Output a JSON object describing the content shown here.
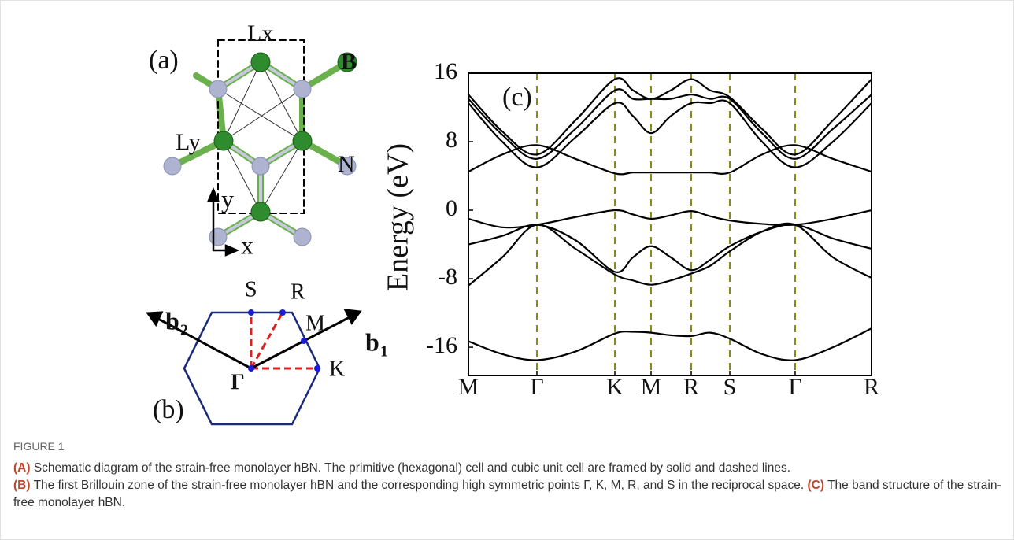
{
  "panel_a": {
    "label": "(a)",
    "lx": "Lx",
    "b": "B",
    "ly": "Ly",
    "n": "N",
    "y": "y",
    "x": "x"
  },
  "panel_b": {
    "label": "(b)",
    "s": "S",
    "r": "R",
    "m": "M",
    "k": "K",
    "gamma": "Γ",
    "b1": "b",
    "b1_sub": "1",
    "b2": "b",
    "b2_sub": "2"
  },
  "chart_data": {
    "type": "line",
    "panel_label": "(c)",
    "ylabel": "Energy (eV)",
    "x": [
      0,
      43,
      87,
      136,
      186,
      209,
      232,
      257,
      283,
      307,
      332,
      373,
      415,
      463,
      512
    ],
    "xlim": [
      0,
      512
    ],
    "xticks": [
      {
        "value": 0,
        "label": "M"
      },
      {
        "value": 87,
        "label": "Γ"
      },
      {
        "value": 186,
        "label": "K"
      },
      {
        "value": 232,
        "label": "M"
      },
      {
        "value": 283,
        "label": "R"
      },
      {
        "value": 332,
        "label": "S"
      },
      {
        "value": 415,
        "label": "Γ"
      },
      {
        "value": 512,
        "label": "R"
      }
    ],
    "ylim": [
      -19.3,
      16
    ],
    "yticks": [
      16,
      8,
      0,
      -8,
      -16
    ],
    "vline_color": "#8a8a1c",
    "series": [
      {
        "color": "#000000",
        "values": [
          -15.3,
          -16.8,
          -17.5,
          -16.5,
          -14.4,
          -14.2,
          -14.3,
          -14.6,
          -14.7,
          -14.3,
          -15.0,
          -16.8,
          -17.5,
          -16.0,
          -13.8
        ]
      },
      {
        "color": "#000000",
        "values": [
          -8.8,
          -5.5,
          -1.7,
          -4.5,
          -7.5,
          -8.2,
          -8.7,
          -8.2,
          -7.4,
          -6.5,
          -4.8,
          -2.5,
          -1.7,
          -5.5,
          -7.9
        ]
      },
      {
        "color": "#000000",
        "values": [
          -4.0,
          -3.0,
          -1.7,
          -3.5,
          -7.2,
          -5.5,
          -4.2,
          -5.5,
          -7.0,
          -5.8,
          -4.2,
          -2.5,
          -1.7,
          -3.3,
          -4.5
        ]
      },
      {
        "color": "#000000",
        "values": [
          -1.0,
          -2.0,
          -1.7,
          -0.8,
          0.0,
          -0.5,
          -1.0,
          -0.6,
          -0.1,
          -0.7,
          -1.2,
          -1.6,
          -1.7,
          -1.0,
          0.0
        ]
      },
      {
        "color": "#000000",
        "values": [
          4.5,
          6.5,
          7.6,
          6.0,
          4.3,
          4.4,
          4.4,
          4.4,
          4.4,
          4.4,
          4.4,
          6.5,
          7.6,
          6.0,
          4.5
        ]
      },
      {
        "color": "#000000",
        "values": [
          12.5,
          8.0,
          5.0,
          8.5,
          12.5,
          11.0,
          9.0,
          11.0,
          12.5,
          12.5,
          12.5,
          8.0,
          5.0,
          8.0,
          12.5
        ]
      },
      {
        "color": "#000000",
        "values": [
          13.0,
          8.8,
          6.0,
          9.5,
          14.0,
          13.0,
          13.0,
          13.0,
          13.5,
          13.0,
          13.0,
          9.0,
          6.0,
          9.5,
          13.5
        ]
      },
      {
        "color": "#000000",
        "values": [
          13.5,
          9.2,
          6.5,
          10.5,
          15.3,
          14.0,
          13.0,
          14.0,
          15.3,
          14.0,
          13.2,
          9.5,
          6.5,
          10.5,
          15.3
        ]
      }
    ]
  },
  "caption": {
    "title": "FIGURE 1",
    "a_label": "(A)",
    "a_text": "Schematic diagram of the strain-free monolayer hBN. The primitive (hexagonal) cell and cubic unit cell are framed by solid and dashed lines.",
    "b_label": "(B)",
    "b_text": "The first Brillouin zone of the strain-free monolayer hBN and the corresponding high symmetric points Γ, K, M, R, and S in the reciprocal space.",
    "c_label": "(C)",
    "c_text": "The band structure of the strain-free monolayer hBN."
  }
}
